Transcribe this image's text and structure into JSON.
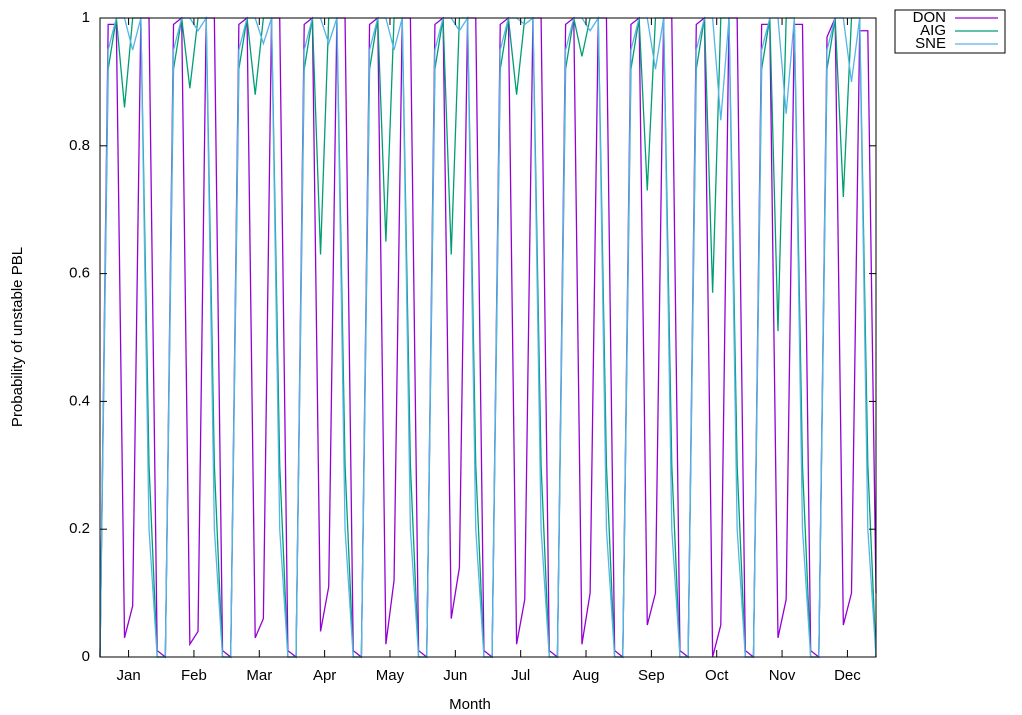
{
  "chart_data": {
    "type": "line",
    "x_label": "Month",
    "y_label": "Probability of unstable PBL",
    "x": [
      0,
      1,
      2,
      3,
      4,
      5,
      6,
      7,
      8,
      9,
      10,
      11,
      12,
      13,
      14,
      15,
      16,
      17,
      18,
      19,
      20,
      21,
      22,
      23,
      24,
      25,
      26,
      27,
      28,
      29,
      30,
      31,
      32,
      33,
      34,
      35,
      36,
      37,
      38,
      39,
      40,
      41,
      42,
      43,
      44,
      45,
      46,
      47,
      48,
      49,
      50,
      51,
      52,
      53,
      54,
      55,
      56,
      57,
      58,
      59,
      60,
      61,
      62,
      63,
      64,
      65,
      66,
      67,
      68,
      69,
      70,
      71,
      72,
      73,
      74,
      75,
      76,
      77,
      78,
      79,
      80,
      81,
      82,
      83,
      84,
      85,
      86,
      87,
      88,
      89,
      90,
      91,
      92,
      93,
      94,
      95
    ],
    "xlim": [
      0,
      95
    ],
    "xticks": [
      {
        "value": 3.5,
        "label": "Jan"
      },
      {
        "value": 11.5,
        "label": "Feb"
      },
      {
        "value": 19.5,
        "label": "Mar"
      },
      {
        "value": 27.5,
        "label": "Apr"
      },
      {
        "value": 35.5,
        "label": "May"
      },
      {
        "value": 43.5,
        "label": "Jun"
      },
      {
        "value": 51.5,
        "label": "Jul"
      },
      {
        "value": 59.5,
        "label": "Aug"
      },
      {
        "value": 67.5,
        "label": "Sep"
      },
      {
        "value": 75.5,
        "label": "Oct"
      },
      {
        "value": 83.5,
        "label": "Nov"
      },
      {
        "value": 91.5,
        "label": "Dec"
      }
    ],
    "ylim": [
      0,
      1
    ],
    "yticks": [
      0,
      0.2,
      0.4,
      0.6,
      0.8,
      1
    ],
    "legend": "outside-top-right",
    "series": [
      {
        "name": "DON",
        "color": "#9400d3",
        "values": [
          0,
          0.99,
          0.99,
          0.03,
          0.08,
          1,
          1,
          0.01,
          0,
          0.99,
          1,
          0.02,
          0.04,
          1,
          1,
          0.01,
          0,
          0.99,
          1,
          0.03,
          0.06,
          1,
          1,
          0.01,
          0,
          0.99,
          1,
          0.04,
          0.11,
          1,
          1,
          0.01,
          0,
          0.99,
          1,
          0.02,
          0.12,
          1,
          1,
          0.01,
          0,
          0.99,
          1,
          0.06,
          0.14,
          1,
          1,
          0.01,
          0,
          0.99,
          1,
          0.02,
          0.09,
          1,
          1,
          0.01,
          0,
          0.99,
          1,
          0.02,
          0.1,
          1,
          1,
          0.01,
          0,
          0.99,
          1,
          0.05,
          0.1,
          1,
          1,
          0.01,
          0,
          0.99,
          1,
          0,
          0.05,
          1,
          1,
          0.01,
          0,
          0.99,
          0.99,
          0.03,
          0.09,
          0.99,
          0.99,
          0.01,
          0,
          0.97,
          1,
          0.05,
          0.1,
          0.98,
          0.98,
          0.1
        ]
      },
      {
        "name": "AIG",
        "color": "#009e73",
        "values": [
          0,
          0.92,
          1,
          0.86,
          1,
          1,
          0.3,
          0,
          0,
          0.92,
          1,
          0.89,
          1,
          1,
          0.3,
          0,
          0,
          0.92,
          1,
          0.88,
          1,
          1,
          0.3,
          0,
          0,
          0.92,
          1,
          0.63,
          1,
          1,
          0.3,
          0,
          0,
          0.92,
          1,
          0.65,
          1,
          1,
          0.3,
          0,
          0,
          0.92,
          1,
          0.63,
          1,
          1,
          0.3,
          0,
          0,
          0.92,
          1,
          0.88,
          1,
          1,
          0.3,
          0,
          0,
          0.92,
          1,
          0.94,
          1,
          1,
          0.3,
          0,
          0,
          0.92,
          1,
          0.73,
          1,
          1,
          0.3,
          0,
          0,
          0.92,
          1,
          0.57,
          1,
          1,
          0.3,
          0,
          0,
          0.92,
          1,
          0.51,
          1,
          1,
          0.3,
          0,
          0,
          0.92,
          1,
          0.72,
          1,
          1,
          0.3,
          0
        ]
      },
      {
        "name": "SNE",
        "color": "#56b4e9",
        "values": [
          0,
          0.95,
          1,
          1,
          0.95,
          1,
          0.2,
          0,
          0,
          0.95,
          1,
          1,
          0.98,
          1,
          0.2,
          0,
          0,
          0.95,
          1,
          1,
          0.96,
          1,
          0.2,
          0,
          0,
          0.95,
          1,
          1,
          0.96,
          1,
          0.2,
          0,
          0,
          0.95,
          1,
          1,
          0.95,
          1,
          0.2,
          0,
          0,
          0.95,
          1,
          1,
          0.98,
          1,
          0.2,
          0,
          0,
          0.95,
          1,
          1,
          0.99,
          1,
          0.2,
          0,
          0,
          0.95,
          1,
          1,
          0.98,
          1,
          0.2,
          0,
          0,
          0.95,
          1,
          1,
          0.92,
          1,
          0.2,
          0,
          0,
          0.95,
          1,
          1,
          0.84,
          1,
          0.2,
          0,
          0,
          0.95,
          1,
          1,
          0.85,
          1,
          0.2,
          0,
          0,
          0.95,
          1,
          1,
          0.9,
          1,
          0.2,
          0
        ]
      }
    ]
  }
}
